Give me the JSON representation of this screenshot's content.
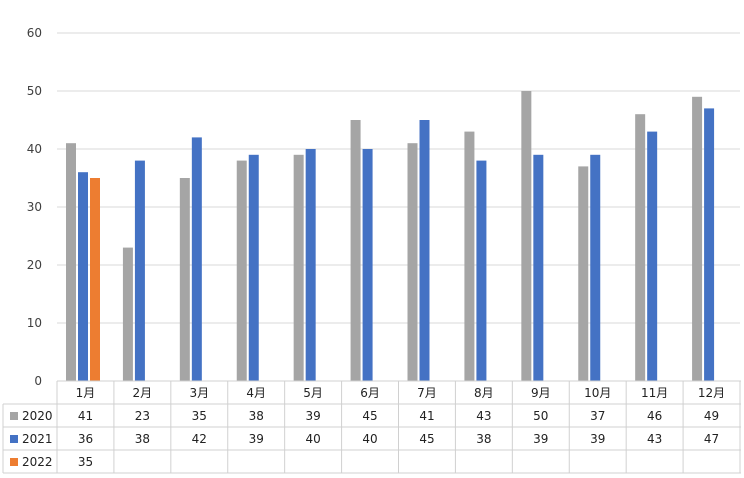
{
  "chart_data": {
    "type": "bar",
    "categories": [
      "1月",
      "2月",
      "3月",
      "4月",
      "5月",
      "6月",
      "7月",
      "8月",
      "9月",
      "10月",
      "11月",
      "12月"
    ],
    "series": [
      {
        "name": "2020",
        "color": "#a5a5a5",
        "values": [
          41,
          23,
          35,
          38,
          39,
          45,
          41,
          43,
          50,
          37,
          46,
          49
        ]
      },
      {
        "name": "2021",
        "color": "#4472c4",
        "values": [
          36,
          38,
          42,
          39,
          40,
          40,
          45,
          38,
          39,
          39,
          43,
          47
        ]
      },
      {
        "name": "2022",
        "color": "#ed7d31",
        "values": [
          35,
          null,
          null,
          null,
          null,
          null,
          null,
          null,
          null,
          null,
          null,
          null
        ]
      }
    ],
    "yticks": [
      0,
      10,
      20,
      30,
      40,
      50,
      60
    ],
    "ylim": [
      0,
      60
    ],
    "grid": true,
    "legend": "data-table-bottom"
  }
}
